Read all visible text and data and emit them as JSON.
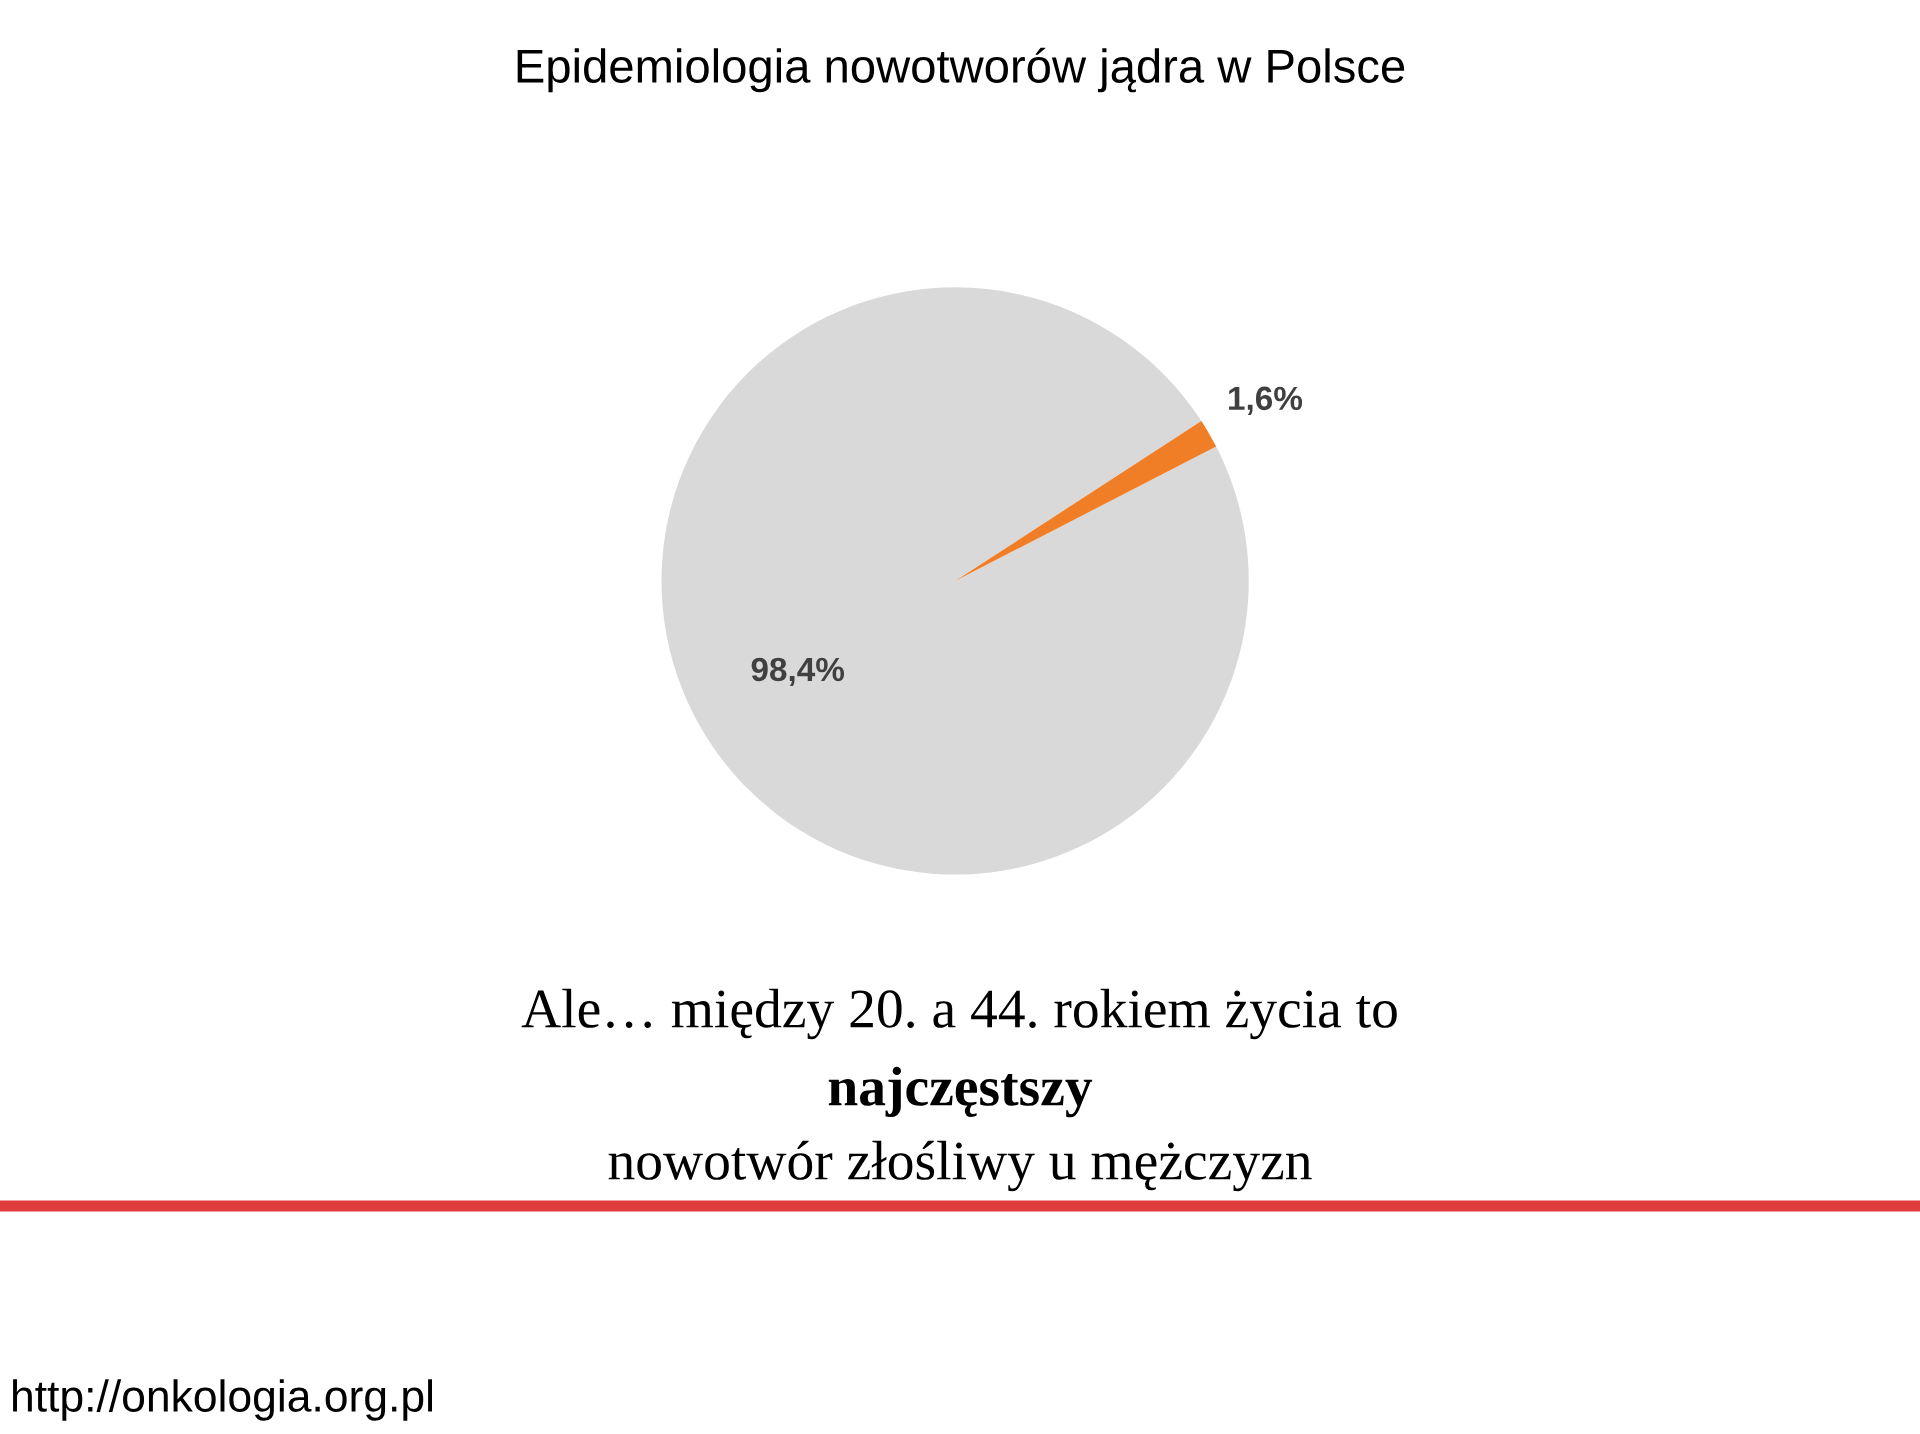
{
  "chart_data": {
    "type": "pie",
    "title": "Epidemiologia nowotworów jądra w Polsce",
    "categories": [
      null,
      null
    ],
    "values": [
      98.4,
      1.6
    ],
    "colors": [
      "#d9d9d9",
      "#f07e26"
    ],
    "value_labels": [
      "98,4%",
      "1,6%"
    ],
    "annotations": [
      "Ale… między 20. a 44. rokiem życia to",
      "najczęstszy",
      "nowotwór złośliwy u mężczyzn",
      "http://onkologia.org.pl"
    ]
  }
}
